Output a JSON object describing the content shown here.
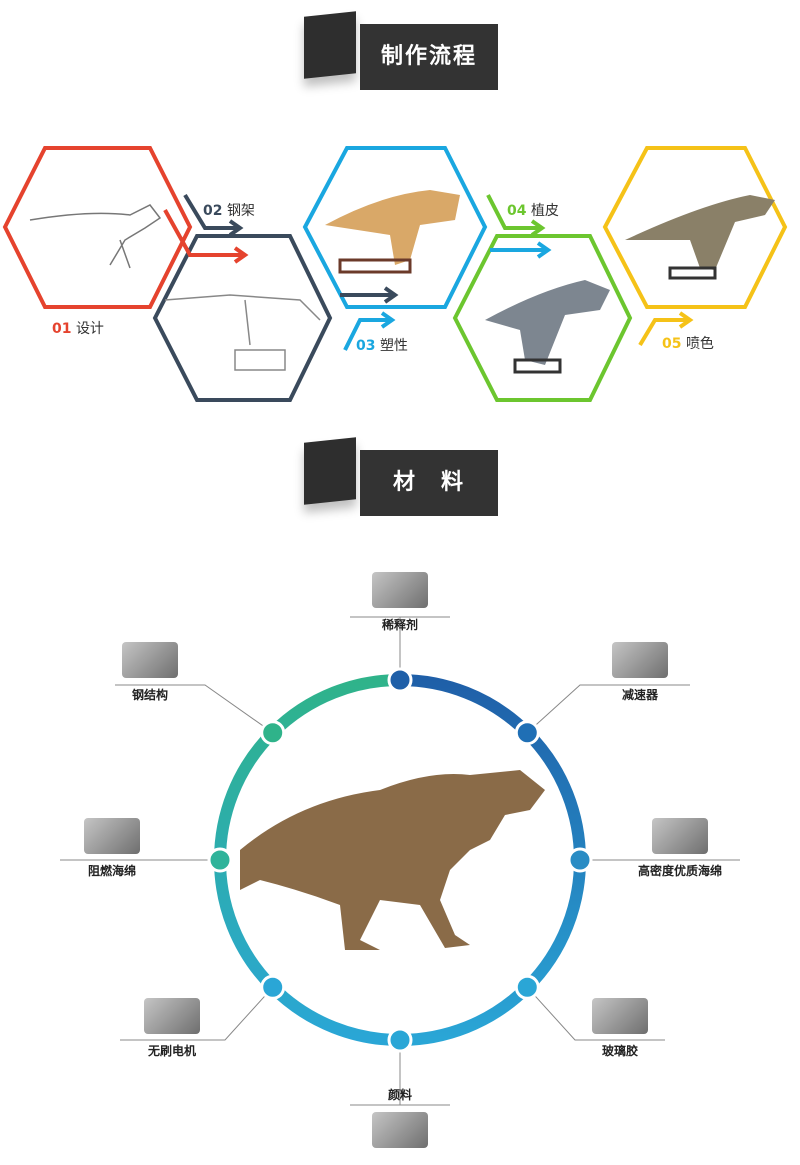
{
  "process_banner": {
    "title": "制作流程"
  },
  "materials_banner": {
    "title": "材　料"
  },
  "steps": [
    {
      "num": "01",
      "label": "设计",
      "color": "#e5432e"
    },
    {
      "num": "02",
      "label": "钢架",
      "color": "#3a4a5c"
    },
    {
      "num": "03",
      "label": "塑性",
      "color": "#1aa7e0"
    },
    {
      "num": "04",
      "label": "植皮",
      "color": "#6cc62f"
    },
    {
      "num": "05",
      "label": "喷色",
      "color": "#f5c218"
    }
  ],
  "materials": [
    {
      "label": "稀释剂",
      "icon": "thinner-cans-icon"
    },
    {
      "label": "减速器",
      "icon": "reducer-icon"
    },
    {
      "label": "高密度优质海绵",
      "icon": "foam-icon"
    },
    {
      "label": "玻璃胶",
      "icon": "sealant-tubes-icon"
    },
    {
      "label": "颜料",
      "icon": "paint-set-icon"
    },
    {
      "label": "无刷电机",
      "icon": "motor-icon"
    },
    {
      "label": "阻燃海绵",
      "icon": "fireproof-foam-icon"
    },
    {
      "label": "钢结构",
      "icon": "steel-structure-icon"
    }
  ],
  "colors": {
    "ring_blue": "#1f6fb5",
    "ring_teal": "#2fb39a",
    "banner": "#333333"
  }
}
